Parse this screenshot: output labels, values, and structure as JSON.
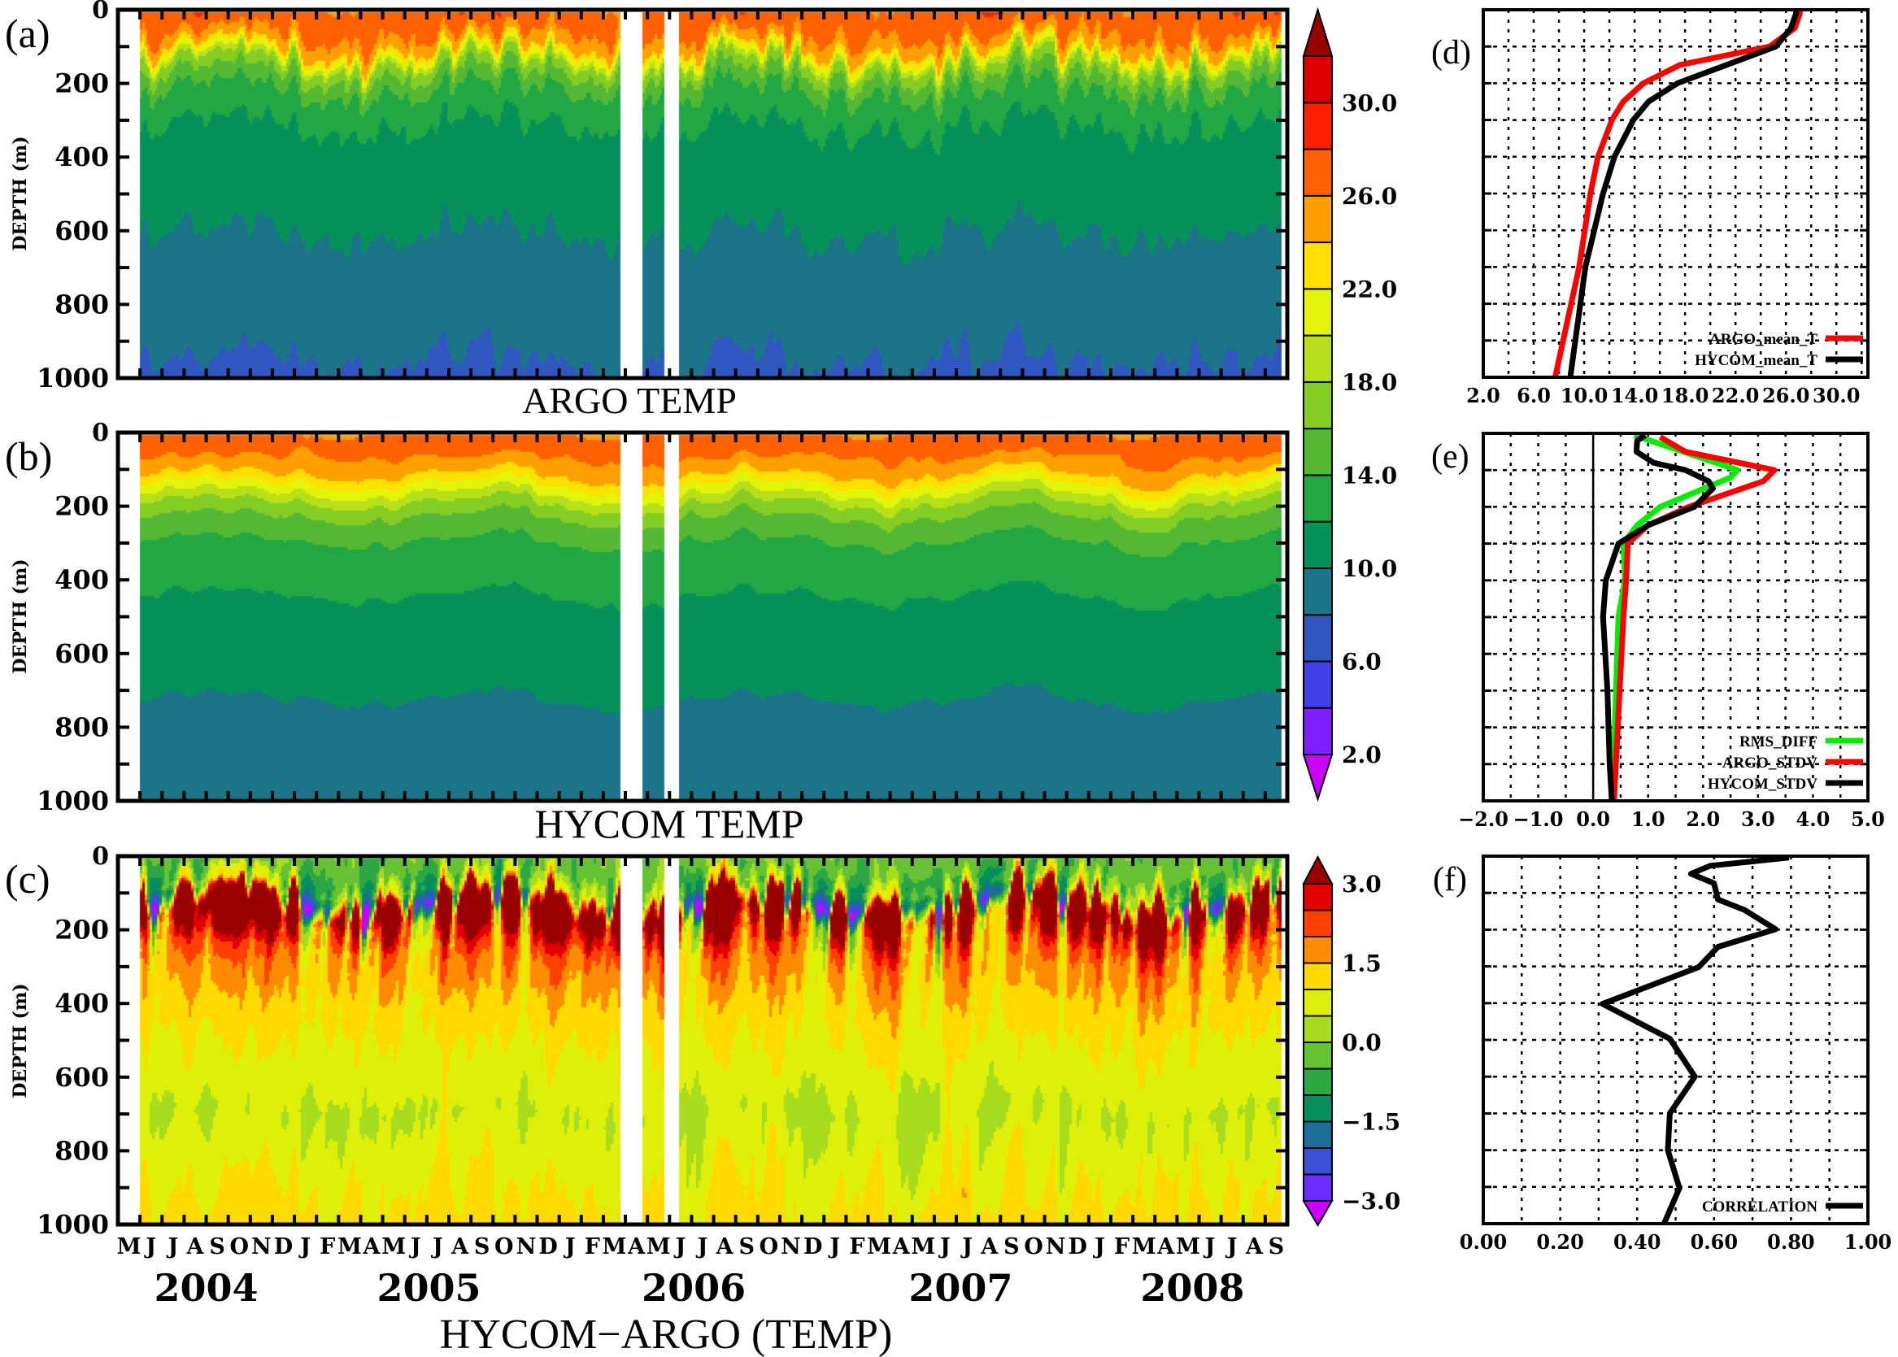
{
  "figure": {
    "panel_labels": {
      "a": "(a)",
      "b": "(b)",
      "c": "(c)",
      "d": "(d)",
      "e": "(e)",
      "f": "(f)"
    },
    "titles": {
      "a": "ARGO  TEMP",
      "b": "HYCOM  TEMP",
      "c": "HYCOM−ARGO  (TEMP)"
    },
    "depth_axis_label": "DEPTH  (m)"
  },
  "chart_data": [
    {
      "id": "a",
      "type": "heatmap",
      "title": "ARGO  TEMP",
      "ylabel": "DEPTH  (m)",
      "ylim": [
        0,
        1000
      ],
      "y_inverted": true,
      "yticks": [
        "0",
        "200",
        "400",
        "600",
        "800",
        "1000"
      ],
      "x_range": [
        "2004-05",
        "2008-09"
      ],
      "month_labels": [
        "M",
        "J",
        "J",
        "A",
        "S",
        "O",
        "N",
        "D",
        "J",
        "F",
        "M",
        "A",
        "M",
        "J",
        "J",
        "A",
        "S",
        "O",
        "N",
        "D",
        "J",
        "F",
        "M",
        "A",
        "M",
        "J",
        "J",
        "A",
        "S",
        "O",
        "N",
        "D",
        "J",
        "F",
        "M",
        "A",
        "M",
        "J",
        "J",
        "A",
        "S",
        "O",
        "N",
        "D",
        "J",
        "F",
        "M",
        "A",
        "M",
        "J",
        "J",
        "A",
        "S"
      ],
      "year_labels": [
        "2004",
        "2005",
        "2006",
        "2007",
        "2008"
      ],
      "data_gaps": [
        "2006-03/2006-04",
        "2006-05/2006-06"
      ],
      "colorbar": {
        "levels": [
          2,
          4,
          6,
          8,
          10,
          12,
          14,
          16,
          18,
          20,
          22,
          24,
          26,
          28,
          30,
          32
        ],
        "labels": [
          "2.0",
          "6.0",
          "10.0",
          "14.0",
          "18.0",
          "22.0",
          "26.0",
          "30.0"
        ],
        "label_values": [
          2,
          6,
          10,
          14,
          18,
          22,
          26,
          30
        ],
        "colors": [
          "#cc00ff",
          "#7f1fff",
          "#4040e8",
          "#3057c0",
          "#1c7488",
          "#06905a",
          "#22a744",
          "#54b834",
          "#84cd24",
          "#b8e01a",
          "#e2f40a",
          "#ffe000",
          "#ffa000",
          "#ff6000",
          "#ff2000",
          "#dd0000",
          "#990000"
        ]
      }
    },
    {
      "id": "b",
      "type": "heatmap",
      "title": "HYCOM  TEMP",
      "ylabel": "DEPTH  (m)",
      "ylim": [
        0,
        1000
      ],
      "y_inverted": true,
      "yticks": [
        "0",
        "200",
        "400",
        "600",
        "800",
        "1000"
      ],
      "x_range": [
        "2004-05",
        "2008-09"
      ],
      "data_gaps": [
        "2006-03/2006-04",
        "2006-05/2006-06"
      ],
      "colorbar": "shared with (a)"
    },
    {
      "id": "c",
      "type": "heatmap",
      "title": "HYCOM−ARGO  (TEMP)",
      "ylabel": "DEPTH  (m)",
      "ylim": [
        0,
        1000
      ],
      "y_inverted": true,
      "yticks": [
        "0",
        "200",
        "400",
        "600",
        "800",
        "1000"
      ],
      "x_range": [
        "2004-05",
        "2008-09"
      ],
      "data_gaps": [
        "2006-03/2006-04",
        "2006-05/2006-06"
      ],
      "colorbar": {
        "levels": [
          -3,
          -2.5,
          -2,
          -1.5,
          -1,
          -0.5,
          0,
          0.5,
          1,
          1.5,
          2,
          2.5,
          3
        ],
        "labels": [
          "−3.0",
          "−1.5",
          "0.0",
          "1.5",
          "3.0"
        ],
        "label_values": [
          -3,
          -1.5,
          0,
          1.5,
          3
        ],
        "colors": [
          "#cc00ff",
          "#6a2cff",
          "#3a4ed6",
          "#1d6e96",
          "#078e5c",
          "#2ba744",
          "#66c232",
          "#a8dc1e",
          "#def00a",
          "#ffda00",
          "#ff8c00",
          "#ff4000",
          "#e50000",
          "#990000"
        ]
      }
    },
    {
      "id": "d",
      "type": "line",
      "orientation": "vertical-profile",
      "xlim": [
        2,
        32.5
      ],
      "xgrid_step": 2,
      "xticks": [
        2,
        6,
        10,
        14,
        18,
        22,
        26,
        30
      ],
      "xtick_labels": [
        "2.0",
        "6.0",
        "10.0",
        "14.0",
        "18.0",
        "22.0",
        "26.0",
        "30.0"
      ],
      "ylim": [
        0,
        1000
      ],
      "y_inverted": true,
      "grid": true,
      "legend": "bottom-right",
      "series": [
        {
          "name": "ARGO_mean_T",
          "color": "#ff0000",
          "depth": [
            0,
            10,
            50,
            100,
            150,
            200,
            250,
            300,
            400,
            500,
            700,
            1000
          ],
          "values": [
            27.1,
            27.1,
            26.7,
            24.7,
            17.6,
            14.7,
            13.1,
            12.2,
            11.1,
            10.5,
            9.6,
            7.7
          ]
        },
        {
          "name": "HYCOM_mean_T",
          "color": "#000000",
          "depth": [
            0,
            10,
            50,
            100,
            150,
            200,
            250,
            300,
            400,
            500,
            700,
            1000
          ],
          "values": [
            26.8,
            26.8,
            26.4,
            25.2,
            21.3,
            17.4,
            15.1,
            13.9,
            12.4,
            11.5,
            10.1,
            8.9
          ]
        }
      ]
    },
    {
      "id": "e",
      "type": "line",
      "orientation": "vertical-profile",
      "xlim": [
        -2,
        5
      ],
      "xgrid_step": 0.5,
      "xticks": [
        -2,
        -1,
        0,
        1,
        2,
        3,
        4,
        5
      ],
      "xtick_labels": [
        "−2.0",
        "−1.0",
        "0.0",
        "1.0",
        "2.0",
        "3.0",
        "4.0",
        "5.0"
      ],
      "ylim": [
        0,
        1000
      ],
      "y_inverted": true,
      "grid": true,
      "zero_line": true,
      "legend": "bottom-right",
      "series": [
        {
          "name": "RMS_DIFF",
          "color": "#00ee00",
          "depth": [
            5,
            100,
            120,
            200,
            250,
            300,
            400,
            500,
            1000
          ],
          "values": [
            0.75,
            2.63,
            2.5,
            1.22,
            0.8,
            0.55,
            0.58,
            0.46,
            0.35
          ]
        },
        {
          "name": "ARGO_STDV",
          "color": "#ff0000",
          "depth": [
            10,
            50,
            100,
            130,
            200,
            250,
            300,
            400,
            500,
            1000
          ],
          "values": [
            1.22,
            1.68,
            3.3,
            3.1,
            1.74,
            1.0,
            0.63,
            0.6,
            0.55,
            0.38
          ]
        },
        {
          "name": "HYCOM_STDV",
          "color": "#000000",
          "depth": [
            5,
            20,
            50,
            80,
            100,
            130,
            150,
            200,
            250,
            300,
            400,
            500,
            700,
            900,
            1000
          ],
          "values": [
            0.95,
            0.8,
            0.79,
            1.1,
            1.68,
            2.1,
            2.18,
            1.84,
            1.0,
            0.46,
            0.23,
            0.18,
            0.26,
            0.3,
            0.34
          ]
        }
      ]
    },
    {
      "id": "f",
      "type": "line",
      "orientation": "vertical-profile",
      "xlim": [
        0,
        1
      ],
      "xgrid_step": 0.1,
      "xticks": [
        0,
        0.2,
        0.4,
        0.6,
        0.8,
        1.0
      ],
      "xtick_labels": [
        "0.00",
        "0.20",
        "0.40",
        "0.60",
        "0.80",
        "1.00"
      ],
      "ylim": [
        0,
        1000
      ],
      "y_inverted": true,
      "grid": true,
      "legend": "bottom-right",
      "series": [
        {
          "name": "CORRELATION",
          "color": "#000000",
          "depth": [
            4,
            26,
            48,
            74,
            118,
            147,
            199,
            247,
            302,
            402,
            497,
            600,
            700,
            800,
            903,
            1000
          ],
          "values": [
            0.795,
            0.59,
            0.54,
            0.6,
            0.61,
            0.68,
            0.76,
            0.61,
            0.56,
            0.31,
            0.485,
            0.55,
            0.485,
            0.48,
            0.51,
            0.47
          ]
        }
      ]
    }
  ]
}
